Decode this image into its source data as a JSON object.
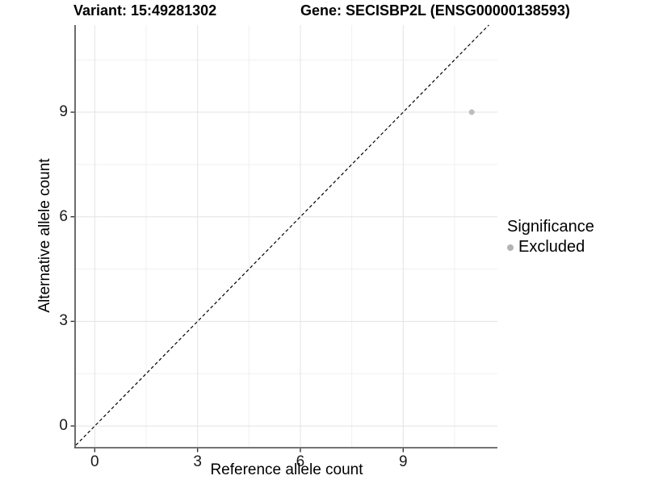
{
  "chart_data": {
    "type": "scatter",
    "titles": {
      "left": "Variant: 15:49281302",
      "right": "Gene: SECISBP2L (ENSG00000138593)"
    },
    "xlabel": "Reference allele count",
    "ylabel": "Alternative allele count",
    "xlim": [
      -0.55,
      11.75
    ],
    "ylim": [
      -0.6,
      11.5
    ],
    "x_ticks": [
      0,
      3,
      6,
      9
    ],
    "y_ticks": [
      0,
      3,
      6,
      9
    ],
    "x_minor_breaks": [
      1.5,
      4.5,
      7.5,
      10.5
    ],
    "y_minor_breaks": [
      1.5,
      4.5,
      7.5,
      10.5
    ],
    "grid": true,
    "points": [
      {
        "x": 11,
        "y": 9,
        "significance": "Excluded"
      }
    ],
    "point_radius_px": 3.5,
    "reference_line": {
      "kind": "diagonal y=x",
      "style": "dashed",
      "color": "#000000"
    },
    "legend": {
      "title": "Significance",
      "position": "right",
      "entries": [
        {
          "label": "Excluded",
          "color": "#b3b3b3"
        }
      ]
    },
    "colors": {
      "background": "#ffffff",
      "point": "#bdbdbd",
      "grid_major": "#e3e3e3",
      "grid_minor": "#f0f0f0",
      "axis_line": "#474747",
      "tick_mark": "#333333"
    }
  }
}
